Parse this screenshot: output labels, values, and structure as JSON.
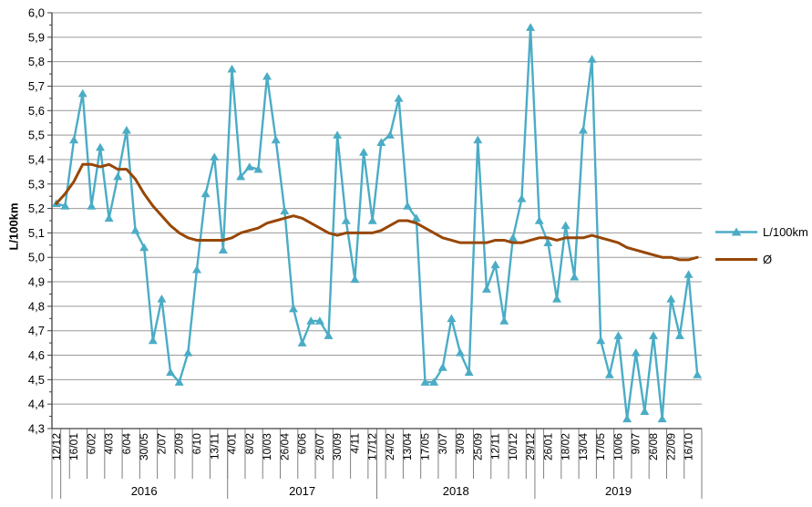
{
  "chart_data": {
    "type": "line",
    "title": "",
    "ylabel": "L/100km",
    "xlabel": "",
    "ylim": [
      4.3,
      6.0
    ],
    "y_major_step": 0.1,
    "y_minor_step": 0.05,
    "grid": "horizontal-major",
    "legend_position": "right",
    "decimal_separator": ",",
    "y_tick_labels": [
      "6,0",
      "5,9",
      "5,8",
      "5,7",
      "5,6",
      "5,5",
      "5,4",
      "5,3",
      "5,2",
      "5,1",
      "5,0",
      "4,9",
      "4,8",
      "4,7",
      "4,6",
      "4,5",
      "4,4",
      "4,3"
    ],
    "x_label_interval": 2,
    "n_points": 74,
    "x_tick_labels": [
      "12/12",
      "16/01",
      "6/02",
      "4/03",
      "6/04",
      "30/05",
      "2/07",
      "2/09",
      "6/10",
      "13/11",
      "4/01",
      "8/02",
      "10/03",
      "26/04",
      "6/06",
      "26/07",
      "30/09",
      "4/11",
      "17/12",
      "24/02",
      "13/04",
      "17/05",
      "3/07",
      "3/09",
      "25/09",
      "12/11",
      "10/12",
      "29/12",
      "26/01",
      "18/02",
      "13/04",
      "17/05",
      "10/06",
      "9/07",
      "26/08",
      "22/09",
      "16/10"
    ],
    "year_groups": [
      {
        "label": "",
        "count": 1
      },
      {
        "label": "2016",
        "count": 19
      },
      {
        "label": "2017",
        "count": 17
      },
      {
        "label": "2018",
        "count": 18
      },
      {
        "label": "2019",
        "count": 19
      }
    ],
    "series": [
      {
        "name": "L/100km",
        "color": "#4BACC6",
        "marker": "triangle",
        "values": [
          5.22,
          5.21,
          5.48,
          5.67,
          5.21,
          5.45,
          5.16,
          5.33,
          5.52,
          5.11,
          5.04,
          4.66,
          4.83,
          4.53,
          4.49,
          4.61,
          4.95,
          5.26,
          5.41,
          5.03,
          5.77,
          5.33,
          5.37,
          5.36,
          5.74,
          5.48,
          5.19,
          4.79,
          4.65,
          4.74,
          4.74,
          4.68,
          5.5,
          5.15,
          4.91,
          5.43,
          5.15,
          5.47,
          5.5,
          5.65,
          5.21,
          5.16,
          4.49,
          4.49,
          4.55,
          4.75,
          4.61,
          4.53,
          5.48,
          4.87,
          4.97,
          4.74,
          5.08,
          5.24,
          5.94,
          5.15,
          5.06,
          4.83,
          5.13,
          4.92,
          5.52,
          5.81,
          4.66,
          4.52,
          4.68,
          4.34,
          4.61,
          4.37,
          4.68,
          4.34,
          4.83,
          4.68,
          4.93,
          4.52
        ]
      },
      {
        "name": "Ø",
        "color": "#974706",
        "marker": "none",
        "values": [
          5.22,
          5.26,
          5.31,
          5.38,
          5.38,
          5.37,
          5.38,
          5.36,
          5.36,
          5.32,
          5.26,
          5.21,
          5.17,
          5.13,
          5.1,
          5.08,
          5.07,
          5.07,
          5.07,
          5.07,
          5.08,
          5.1,
          5.11,
          5.12,
          5.14,
          5.15,
          5.16,
          5.17,
          5.16,
          5.14,
          5.12,
          5.1,
          5.09,
          5.1,
          5.1,
          5.1,
          5.1,
          5.11,
          5.13,
          5.15,
          5.15,
          5.14,
          5.12,
          5.1,
          5.08,
          5.07,
          5.06,
          5.06,
          5.06,
          5.06,
          5.07,
          5.07,
          5.06,
          5.06,
          5.07,
          5.08,
          5.08,
          5.07,
          5.08,
          5.08,
          5.08,
          5.09,
          5.08,
          5.07,
          5.06,
          5.04,
          5.03,
          5.02,
          5.01,
          5.0,
          5.0,
          4.99,
          4.99,
          5.0
        ]
      }
    ],
    "colors": {
      "gridline": "#9A9A9A",
      "axis": "#404040",
      "tick": "#7F7F7F",
      "text": "#000000",
      "background": "#FFFFFF"
    }
  }
}
